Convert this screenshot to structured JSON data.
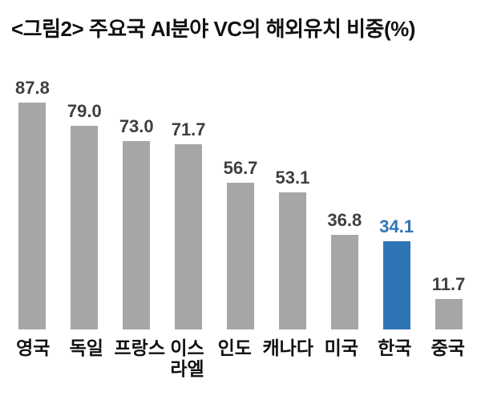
{
  "title": "<그림2> 주요국 AI분야 VC의 해외유치 비중(%)",
  "colors": {
    "bar_default": "#a6a6a6",
    "bar_highlight": "#2e75b6",
    "value_label_default": "#3f3f3f",
    "value_label_highlight": "#2e75b6"
  },
  "chart_data": {
    "type": "bar",
    "title": "<그림2> 주요국 AI분야 VC의 해외유치 비중(%)",
    "categories": [
      "영국",
      "독일",
      "프랑스",
      "이스라엘",
      "인도",
      "캐나다",
      "미국",
      "한국",
      "중국"
    ],
    "values": [
      87.8,
      79.0,
      73.0,
      71.7,
      56.7,
      53.1,
      36.8,
      34.1,
      11.7
    ],
    "highlight_category": "한국",
    "xlabel": "",
    "ylabel": "",
    "ylim": [
      0,
      100
    ],
    "grid": false,
    "legend": false,
    "value_labels": true,
    "value_label_format": "one-decimal"
  }
}
